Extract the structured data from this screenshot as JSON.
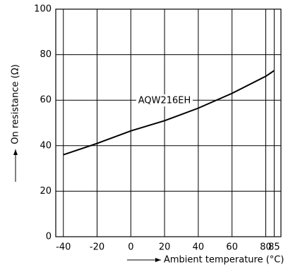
{
  "chart_data": {
    "type": "line",
    "x": [
      -40,
      -20,
      0,
      20,
      40,
      60,
      80,
      85
    ],
    "series": [
      {
        "name": "AQW216EH",
        "color": "#000000",
        "values": [
          36,
          41,
          46.5,
          51,
          56.5,
          63,
          70.5,
          73
        ]
      }
    ],
    "xlim": [
      -44.5,
      89
    ],
    "xticks": [
      -40,
      -20,
      0,
      20,
      40,
      60,
      80,
      85
    ],
    "ylim": [
      0,
      100
    ],
    "yticks": [
      0,
      20,
      40,
      60,
      80,
      100
    ],
    "xlabel": "Ambient temperature (°C)",
    "ylabel": "On resistance (Ω)",
    "grid": true
  }
}
